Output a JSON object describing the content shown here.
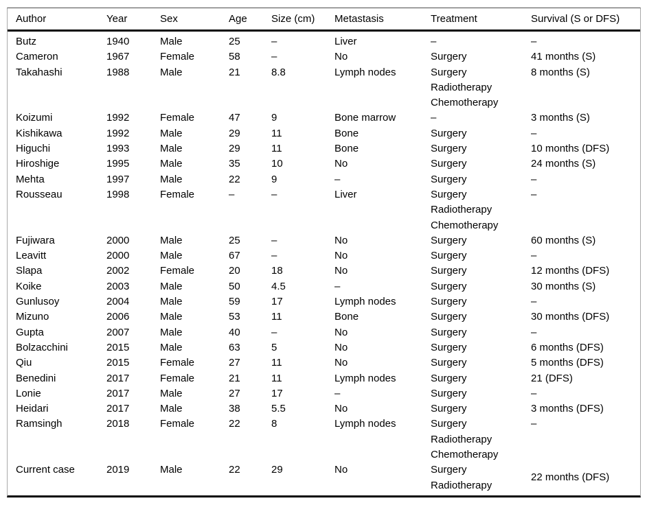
{
  "colors": {
    "text": "#000000",
    "rule_heavy": "#000000",
    "frame_light": "#a9a9a9",
    "background": "#ffffff"
  },
  "table": {
    "columns": [
      {
        "key": "author",
        "label": "Author"
      },
      {
        "key": "year",
        "label": "Year"
      },
      {
        "key": "sex",
        "label": "Sex"
      },
      {
        "key": "age",
        "label": "Age"
      },
      {
        "key": "size",
        "label": "Size (cm)"
      },
      {
        "key": "metastasis",
        "label": "Metastasis"
      },
      {
        "key": "treatment",
        "label": "Treatment"
      },
      {
        "key": "survival",
        "label": "Survival (S or DFS)"
      }
    ],
    "rows": [
      {
        "author": "Butz",
        "year": "1940",
        "sex": "Male",
        "age": "25",
        "size": "–",
        "metastasis": "Liver",
        "treatment": [
          "–"
        ],
        "survival": "–"
      },
      {
        "author": "Cameron",
        "year": "1967",
        "sex": "Female",
        "age": "58",
        "size": "–",
        "metastasis": "No",
        "treatment": [
          "Surgery"
        ],
        "survival": "41 months (S)"
      },
      {
        "author": "Takahashi",
        "year": "1988",
        "sex": "Male",
        "age": "21",
        "size": "8.8",
        "metastasis": "Lymph nodes",
        "treatment": [
          "Surgery",
          "Radiotherapy",
          "Chemotherapy"
        ],
        "survival": "8 months (S)"
      },
      {
        "author": "Koizumi",
        "year": "1992",
        "sex": "Female",
        "age": "47",
        "size": "9",
        "metastasis": "Bone marrow",
        "treatment": [
          "–"
        ],
        "survival": "3 months (S)"
      },
      {
        "author": "Kishikawa",
        "year": "1992",
        "sex": "Male",
        "age": "29",
        "size": "11",
        "metastasis": "Bone",
        "treatment": [
          "Surgery"
        ],
        "survival": "–"
      },
      {
        "author": "Higuchi",
        "year": "1993",
        "sex": "Male",
        "age": "29",
        "size": "11",
        "metastasis": "Bone",
        "treatment": [
          "Surgery"
        ],
        "survival": "10 months (DFS)"
      },
      {
        "author": "Hiroshige",
        "year": "1995",
        "sex": "Male",
        "age": "35",
        "size": "10",
        "metastasis": "No",
        "treatment": [
          "Surgery"
        ],
        "survival": "24 months (S)"
      },
      {
        "author": "Mehta",
        "year": "1997",
        "sex": "Male",
        "age": "22",
        "size": "9",
        "metastasis": "–",
        "treatment": [
          "Surgery"
        ],
        "survival": "–"
      },
      {
        "author": "Rousseau",
        "year": "1998",
        "sex": "Female",
        "age": "–",
        "size": "–",
        "metastasis": "Liver",
        "treatment": [
          "Surgery",
          "Radiotherapy",
          "Chemotherapy"
        ],
        "survival": "–"
      },
      {
        "author": "Fujiwara",
        "year": "2000",
        "sex": "Male",
        "age": "25",
        "size": "–",
        "metastasis": "No",
        "treatment": [
          "Surgery"
        ],
        "survival": "60 months (S)"
      },
      {
        "author": "Leavitt",
        "year": "2000",
        "sex": "Male",
        "age": "67",
        "size": "–",
        "metastasis": "No",
        "treatment": [
          "Surgery"
        ],
        "survival": "–"
      },
      {
        "author": "Slapa",
        "year": "2002",
        "sex": "Female",
        "age": "20",
        "size": "18",
        "metastasis": "No",
        "treatment": [
          "Surgery"
        ],
        "survival": "12 months (DFS)"
      },
      {
        "author": "Koike",
        "year": "2003",
        "sex": "Male",
        "age": "50",
        "size": "4.5",
        "metastasis": "–",
        "treatment": [
          "Surgery"
        ],
        "survival": "30 months (S)"
      },
      {
        "author": "Gunlusoy",
        "year": "2004",
        "sex": "Male",
        "age": "59",
        "size": "17",
        "metastasis": "Lymph nodes",
        "treatment": [
          "Surgery"
        ],
        "survival": "–"
      },
      {
        "author": "Mizuno",
        "year": "2006",
        "sex": "Male",
        "age": "53",
        "size": "11",
        "metastasis": "Bone",
        "treatment": [
          "Surgery"
        ],
        "survival": "30 months (DFS)"
      },
      {
        "author": "Gupta",
        "year": "2007",
        "sex": "Male",
        "age": "40",
        "size": "–",
        "metastasis": "No",
        "treatment": [
          "Surgery"
        ],
        "survival": "–"
      },
      {
        "author": "Bolzacchini",
        "year": "2015",
        "sex": "Male",
        "age": "63",
        "size": "5",
        "metastasis": "No",
        "treatment": [
          "Surgery"
        ],
        "survival": "6 months (DFS)"
      },
      {
        "author": "Qiu",
        "year": "2015",
        "sex": "Female",
        "age": "27",
        "size": "11",
        "metastasis": "No",
        "treatment": [
          "Surgery"
        ],
        "survival": "5 months (DFS)"
      },
      {
        "author": "Benedini",
        "year": "2017",
        "sex": "Female",
        "age": "21",
        "size": "11",
        "metastasis": "Lymph nodes",
        "treatment": [
          "Surgery"
        ],
        "survival": "21 (DFS)"
      },
      {
        "author": "Lonie",
        "year": "2017",
        "sex": "Male",
        "age": "27",
        "size": "17",
        "metastasis": "–",
        "treatment": [
          "Surgery"
        ],
        "survival": "–"
      },
      {
        "author": "Heidari",
        "year": "2017",
        "sex": "Male",
        "age": "38",
        "size": "5.5",
        "metastasis": "No",
        "treatment": [
          "Surgery"
        ],
        "survival": "3 months (DFS)"
      },
      {
        "author": "Ramsingh",
        "year": "2018",
        "sex": "Female",
        "age": "22",
        "size": "8",
        "metastasis": "Lymph nodes",
        "treatment": [
          "Surgery",
          "Radiotherapy",
          "Chemotherapy"
        ],
        "survival": "–"
      },
      {
        "author": "Current case",
        "year": "2019",
        "sex": "Male",
        "age": "22",
        "size": "29",
        "metastasis": "No",
        "treatment": [
          "Surgery",
          "Radiotherapy"
        ],
        "survival": "22 months (DFS)",
        "survival_valign": "middle"
      }
    ]
  }
}
